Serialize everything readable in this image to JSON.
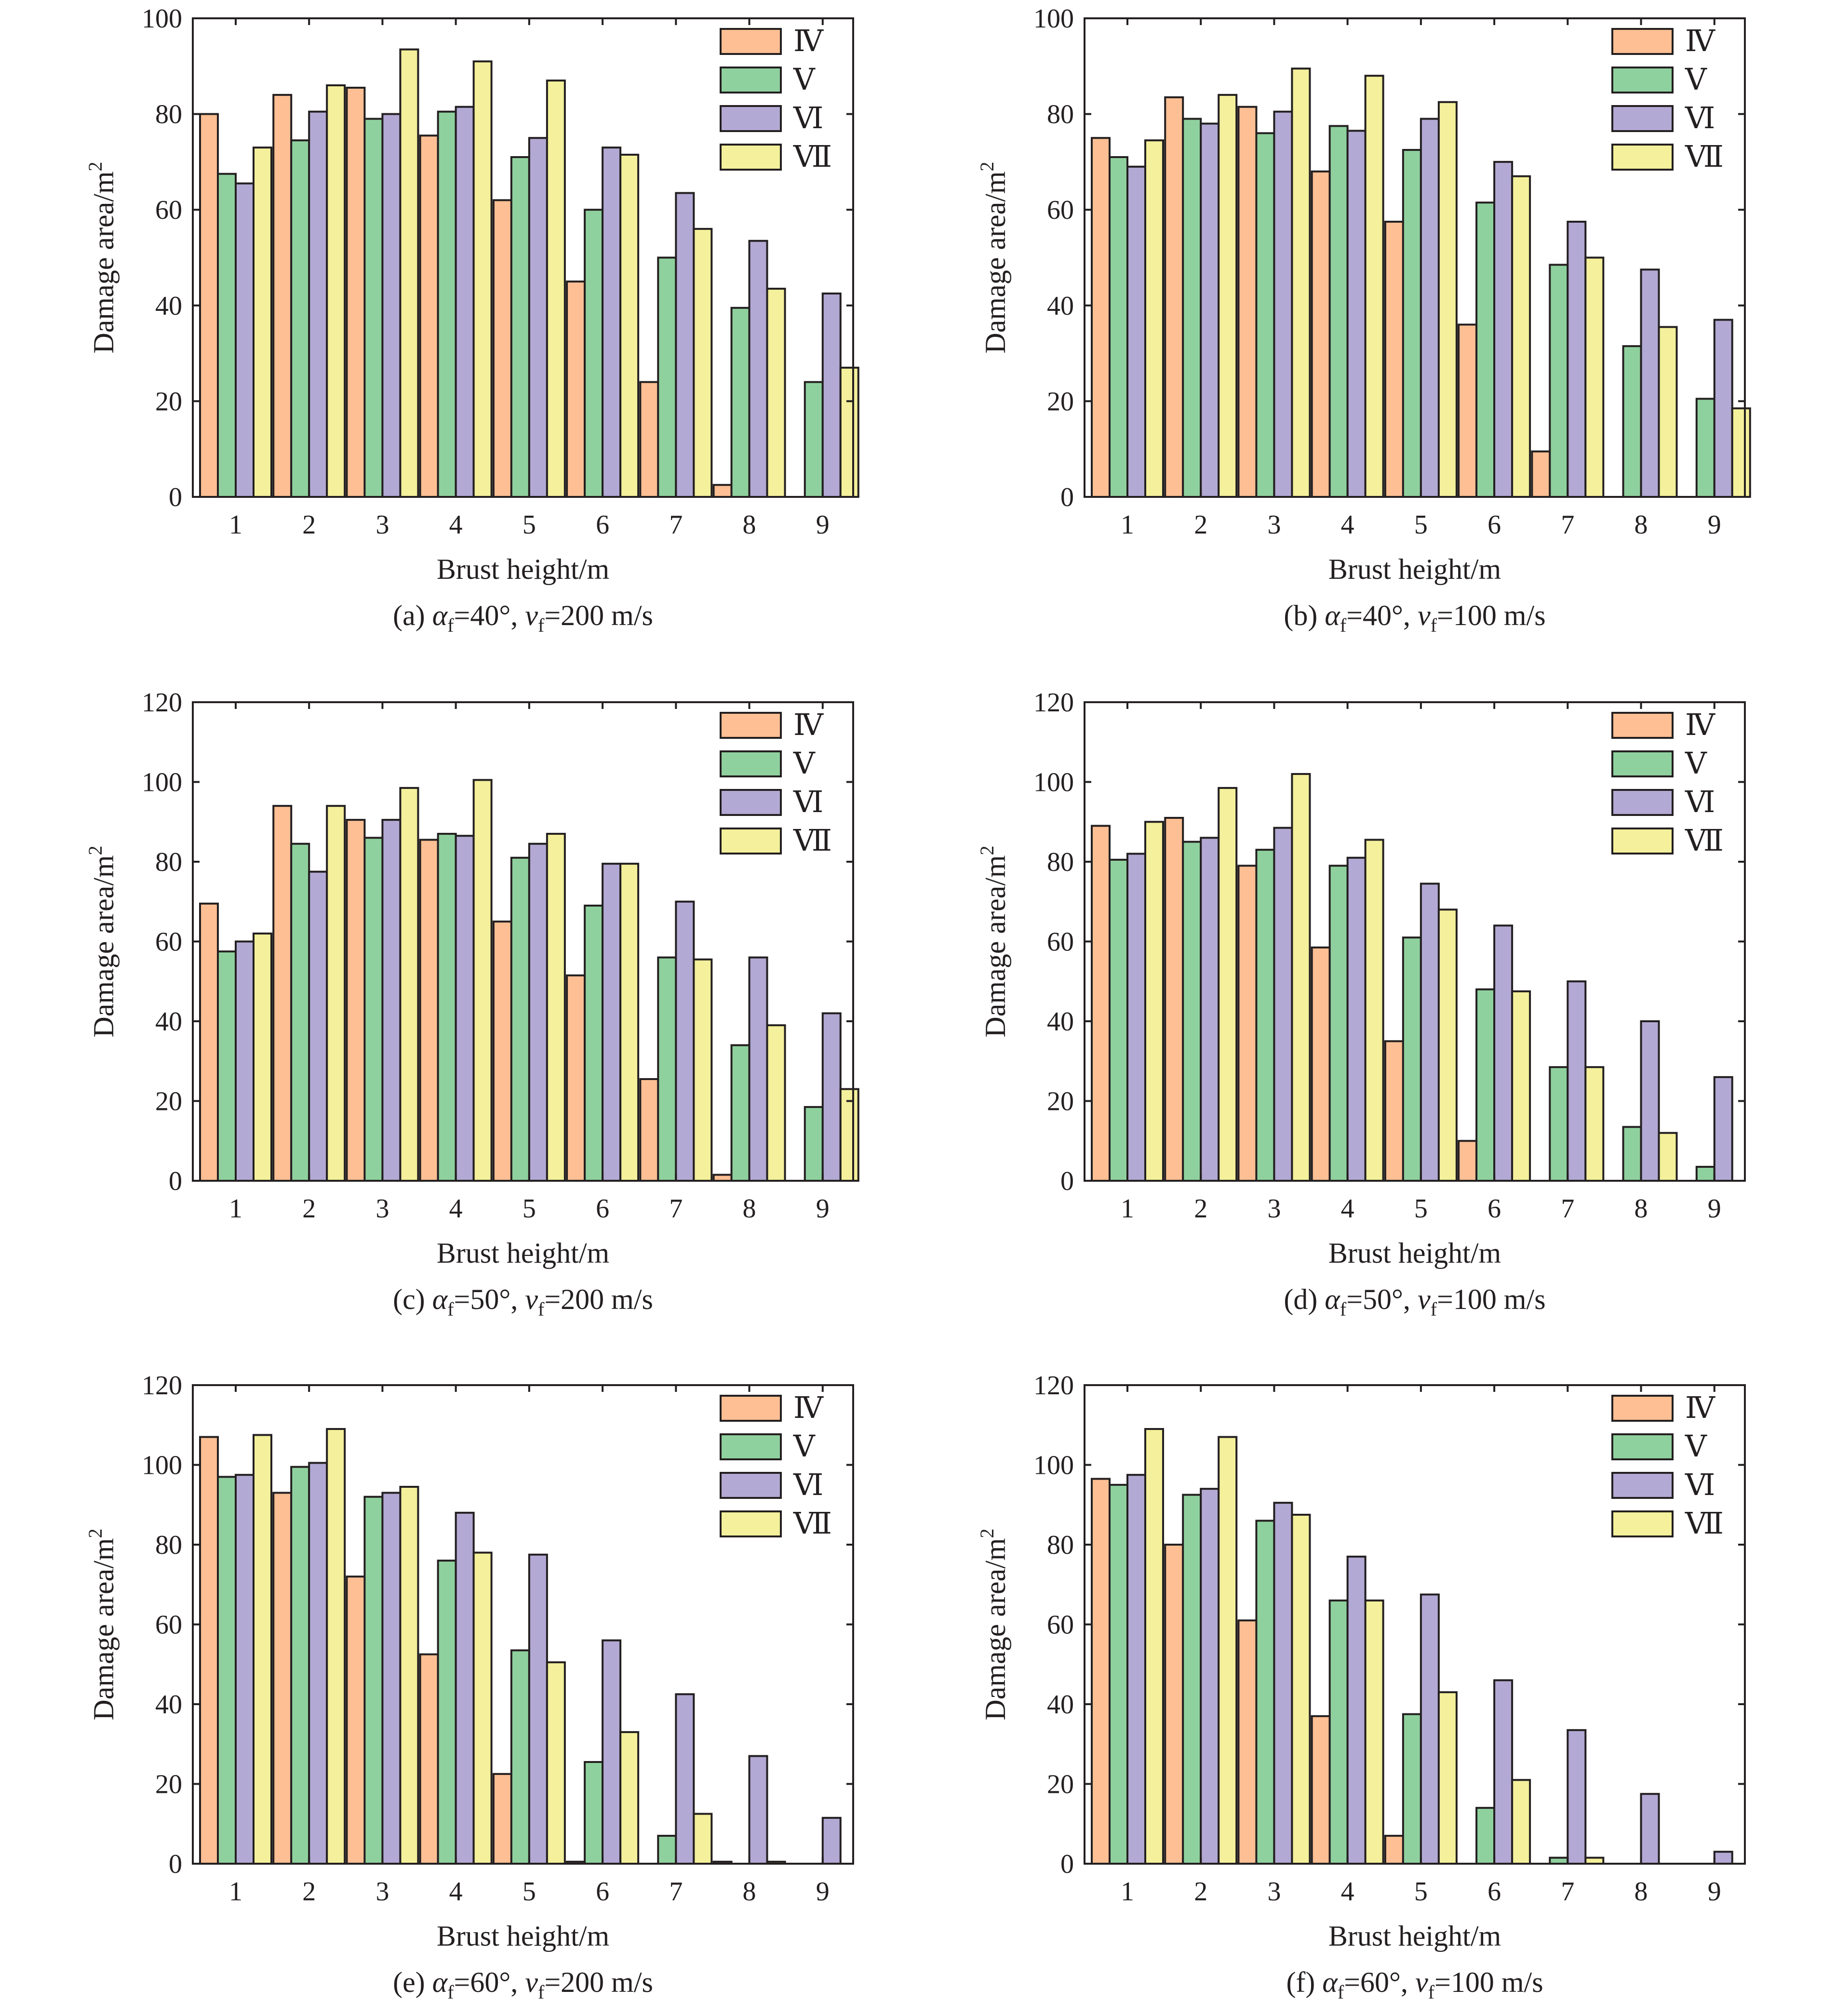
{
  "colors": {
    "IV": "#fdbf93",
    "V": "#8fd19e",
    "VI": "#b2a9d4",
    "VII": "#f4f09b",
    "axis": "#231f20"
  },
  "chart_data": [
    {
      "type": "bar",
      "caption": {
        "prefix": "(a) ",
        "alpha_sym": "α",
        "v_sym": "v",
        "sub": "f",
        "alpha_val": "=40°, ",
        "v_val": "=200 m/s"
      },
      "xlabel": "Brust height/m",
      "ylabel": "Damage area/m",
      "ylabel_sup": "2",
      "ylim": [
        0,
        100
      ],
      "yticks": [
        "0",
        "20",
        "40",
        "60",
        "80",
        "100"
      ],
      "categories": [
        "1",
        "2",
        "3",
        "4",
        "5",
        "6",
        "7",
        "8",
        "9"
      ],
      "legend_position": "top-right",
      "series": [
        {
          "name": "Ⅳ",
          "key": "IV",
          "values": [
            80,
            84,
            85.5,
            75.5,
            62,
            45,
            24,
            2.5,
            0
          ]
        },
        {
          "name": "Ⅴ",
          "key": "V",
          "values": [
            67.5,
            74.5,
            79,
            80.5,
            71,
            60,
            50,
            39.5,
            24
          ]
        },
        {
          "name": "Ⅵ",
          "key": "VI",
          "values": [
            65.5,
            80.5,
            80,
            81.5,
            75,
            73,
            63.5,
            53.5,
            42.5
          ]
        },
        {
          "name": "Ⅶ",
          "key": "VII",
          "values": [
            73,
            86,
            93.5,
            91,
            87,
            71.5,
            56,
            43.5,
            27
          ]
        }
      ]
    },
    {
      "type": "bar",
      "caption": {
        "prefix": "(b) ",
        "alpha_sym": "α",
        "v_sym": "v",
        "sub": "f",
        "alpha_val": "=40°, ",
        "v_val": "=100 m/s"
      },
      "xlabel": "Brust height/m",
      "ylabel": "Damage area/m",
      "ylabel_sup": "2",
      "ylim": [
        0,
        100
      ],
      "yticks": [
        "0",
        "20",
        "40",
        "60",
        "80",
        "100"
      ],
      "categories": [
        "1",
        "2",
        "3",
        "4",
        "5",
        "6",
        "7",
        "8",
        "9"
      ],
      "legend_position": "top-right",
      "series": [
        {
          "name": "Ⅳ",
          "key": "IV",
          "values": [
            75,
            83.5,
            81.5,
            68,
            57.5,
            36,
            9.5,
            0,
            0
          ]
        },
        {
          "name": "Ⅴ",
          "key": "V",
          "values": [
            71,
            79,
            76,
            77.5,
            72.5,
            61.5,
            48.5,
            31.5,
            20.5
          ]
        },
        {
          "name": "Ⅵ",
          "key": "VI",
          "values": [
            69,
            78,
            80.5,
            76.5,
            79,
            70,
            57.5,
            47.5,
            37
          ]
        },
        {
          "name": "Ⅶ",
          "key": "VII",
          "values": [
            74.5,
            84,
            89.5,
            88,
            82.5,
            67,
            50,
            35.5,
            18.5
          ]
        }
      ]
    },
    {
      "type": "bar",
      "caption": {
        "prefix": "(c) ",
        "alpha_sym": "α",
        "v_sym": "v",
        "sub": "f",
        "alpha_val": "=50°, ",
        "v_val": "=200 m/s"
      },
      "xlabel": "Brust height/m",
      "ylabel": "Damage area/m",
      "ylabel_sup": "2",
      "ylim": [
        0,
        120
      ],
      "yticks": [
        "0",
        "20",
        "40",
        "60",
        "80",
        "100",
        "120"
      ],
      "categories": [
        "1",
        "2",
        "3",
        "4",
        "5",
        "6",
        "7",
        "8",
        "9"
      ],
      "legend_position": "top-right",
      "series": [
        {
          "name": "Ⅳ",
          "key": "IV",
          "values": [
            69.5,
            94,
            90.5,
            85.5,
            65,
            51.5,
            25.5,
            1.5,
            0
          ]
        },
        {
          "name": "Ⅴ",
          "key": "V",
          "values": [
            57.5,
            84.5,
            86,
            87,
            81,
            69,
            56,
            34,
            18.5
          ]
        },
        {
          "name": "Ⅵ",
          "key": "VI",
          "values": [
            60,
            77.5,
            90.5,
            86.5,
            84.5,
            79.5,
            70,
            56,
            42
          ]
        },
        {
          "name": "Ⅶ",
          "key": "VII",
          "values": [
            62,
            94,
            98.5,
            100.5,
            87,
            79.5,
            55.5,
            39,
            23
          ]
        }
      ]
    },
    {
      "type": "bar",
      "caption": {
        "prefix": "(d) ",
        "alpha_sym": "α",
        "v_sym": "v",
        "sub": "f",
        "alpha_val": "=50°, ",
        "v_val": "=100 m/s"
      },
      "xlabel": "Brust height/m",
      "ylabel": "Damage area/m",
      "ylabel_sup": "2",
      "ylim": [
        0,
        120
      ],
      "yticks": [
        "0",
        "20",
        "40",
        "60",
        "80",
        "100",
        "120"
      ],
      "categories": [
        "1",
        "2",
        "3",
        "4",
        "5",
        "6",
        "7",
        "8",
        "9"
      ],
      "legend_position": "top-right",
      "series": [
        {
          "name": "Ⅳ",
          "key": "IV",
          "values": [
            89,
            91,
            79,
            58.5,
            35,
            10,
            0,
            0,
            0
          ]
        },
        {
          "name": "Ⅴ",
          "key": "V",
          "values": [
            80.5,
            85,
            83,
            79,
            61,
            48,
            28.5,
            13.5,
            3.5
          ]
        },
        {
          "name": "Ⅵ",
          "key": "VI",
          "values": [
            82,
            86,
            88.5,
            81,
            74.5,
            64,
            50,
            40,
            26
          ]
        },
        {
          "name": "Ⅶ",
          "key": "VII",
          "values": [
            90,
            98.5,
            102,
            85.5,
            68,
            47.5,
            28.5,
            12,
            0
          ]
        }
      ]
    },
    {
      "type": "bar",
      "caption": {
        "prefix": "(e) ",
        "alpha_sym": "α",
        "v_sym": "v",
        "sub": "f",
        "alpha_val": "=60°, ",
        "v_val": "=200 m/s"
      },
      "xlabel": "Brust height/m",
      "ylabel": "Damage area/m",
      "ylabel_sup": "2",
      "ylim": [
        0,
        120
      ],
      "yticks": [
        "0",
        "20",
        "40",
        "60",
        "80",
        "100",
        "120"
      ],
      "categories": [
        "1",
        "2",
        "3",
        "4",
        "5",
        "6",
        "7",
        "8",
        "9"
      ],
      "legend_position": "top-right",
      "series": [
        {
          "name": "Ⅳ",
          "key": "IV",
          "values": [
            107,
            93,
            72,
            52.5,
            22.5,
            0.5,
            0,
            0.5,
            0
          ]
        },
        {
          "name": "Ⅴ",
          "key": "V",
          "values": [
            97,
            99.5,
            92,
            76,
            53.5,
            25.5,
            7,
            0,
            0
          ]
        },
        {
          "name": "Ⅵ",
          "key": "VI",
          "values": [
            97.5,
            100.5,
            93,
            88,
            77.5,
            56,
            42.5,
            27,
            11.5
          ]
        },
        {
          "name": "Ⅶ",
          "key": "VII",
          "values": [
            107.5,
            109,
            94.5,
            78,
            50.5,
            33,
            12.5,
            0.5,
            0
          ]
        }
      ]
    },
    {
      "type": "bar",
      "caption": {
        "prefix": "(f) ",
        "alpha_sym": "α",
        "v_sym": "v",
        "sub": "f",
        "alpha_val": "=60°, ",
        "v_val": "=100 m/s"
      },
      "xlabel": "Brust height/m",
      "ylabel": "Damage area/m",
      "ylabel_sup": "2",
      "ylim": [
        0,
        120
      ],
      "yticks": [
        "0",
        "20",
        "40",
        "60",
        "80",
        "100",
        "120"
      ],
      "categories": [
        "1",
        "2",
        "3",
        "4",
        "5",
        "6",
        "7",
        "8",
        "9"
      ],
      "legend_position": "top-right",
      "series": [
        {
          "name": "Ⅳ",
          "key": "IV",
          "values": [
            96.5,
            80,
            61,
            37,
            7,
            0,
            0,
            0,
            0
          ]
        },
        {
          "name": "Ⅴ",
          "key": "V",
          "values": [
            95,
            92.5,
            86,
            66,
            37.5,
            14,
            1.5,
            0,
            0
          ]
        },
        {
          "name": "Ⅵ",
          "key": "VI",
          "values": [
            97.5,
            94,
            90.5,
            77,
            67.5,
            46,
            33.5,
            17.5,
            3
          ]
        },
        {
          "name": "Ⅶ",
          "key": "VII",
          "values": [
            109,
            107,
            87.5,
            66,
            43,
            21,
            1.5,
            0,
            0
          ]
        }
      ]
    }
  ]
}
